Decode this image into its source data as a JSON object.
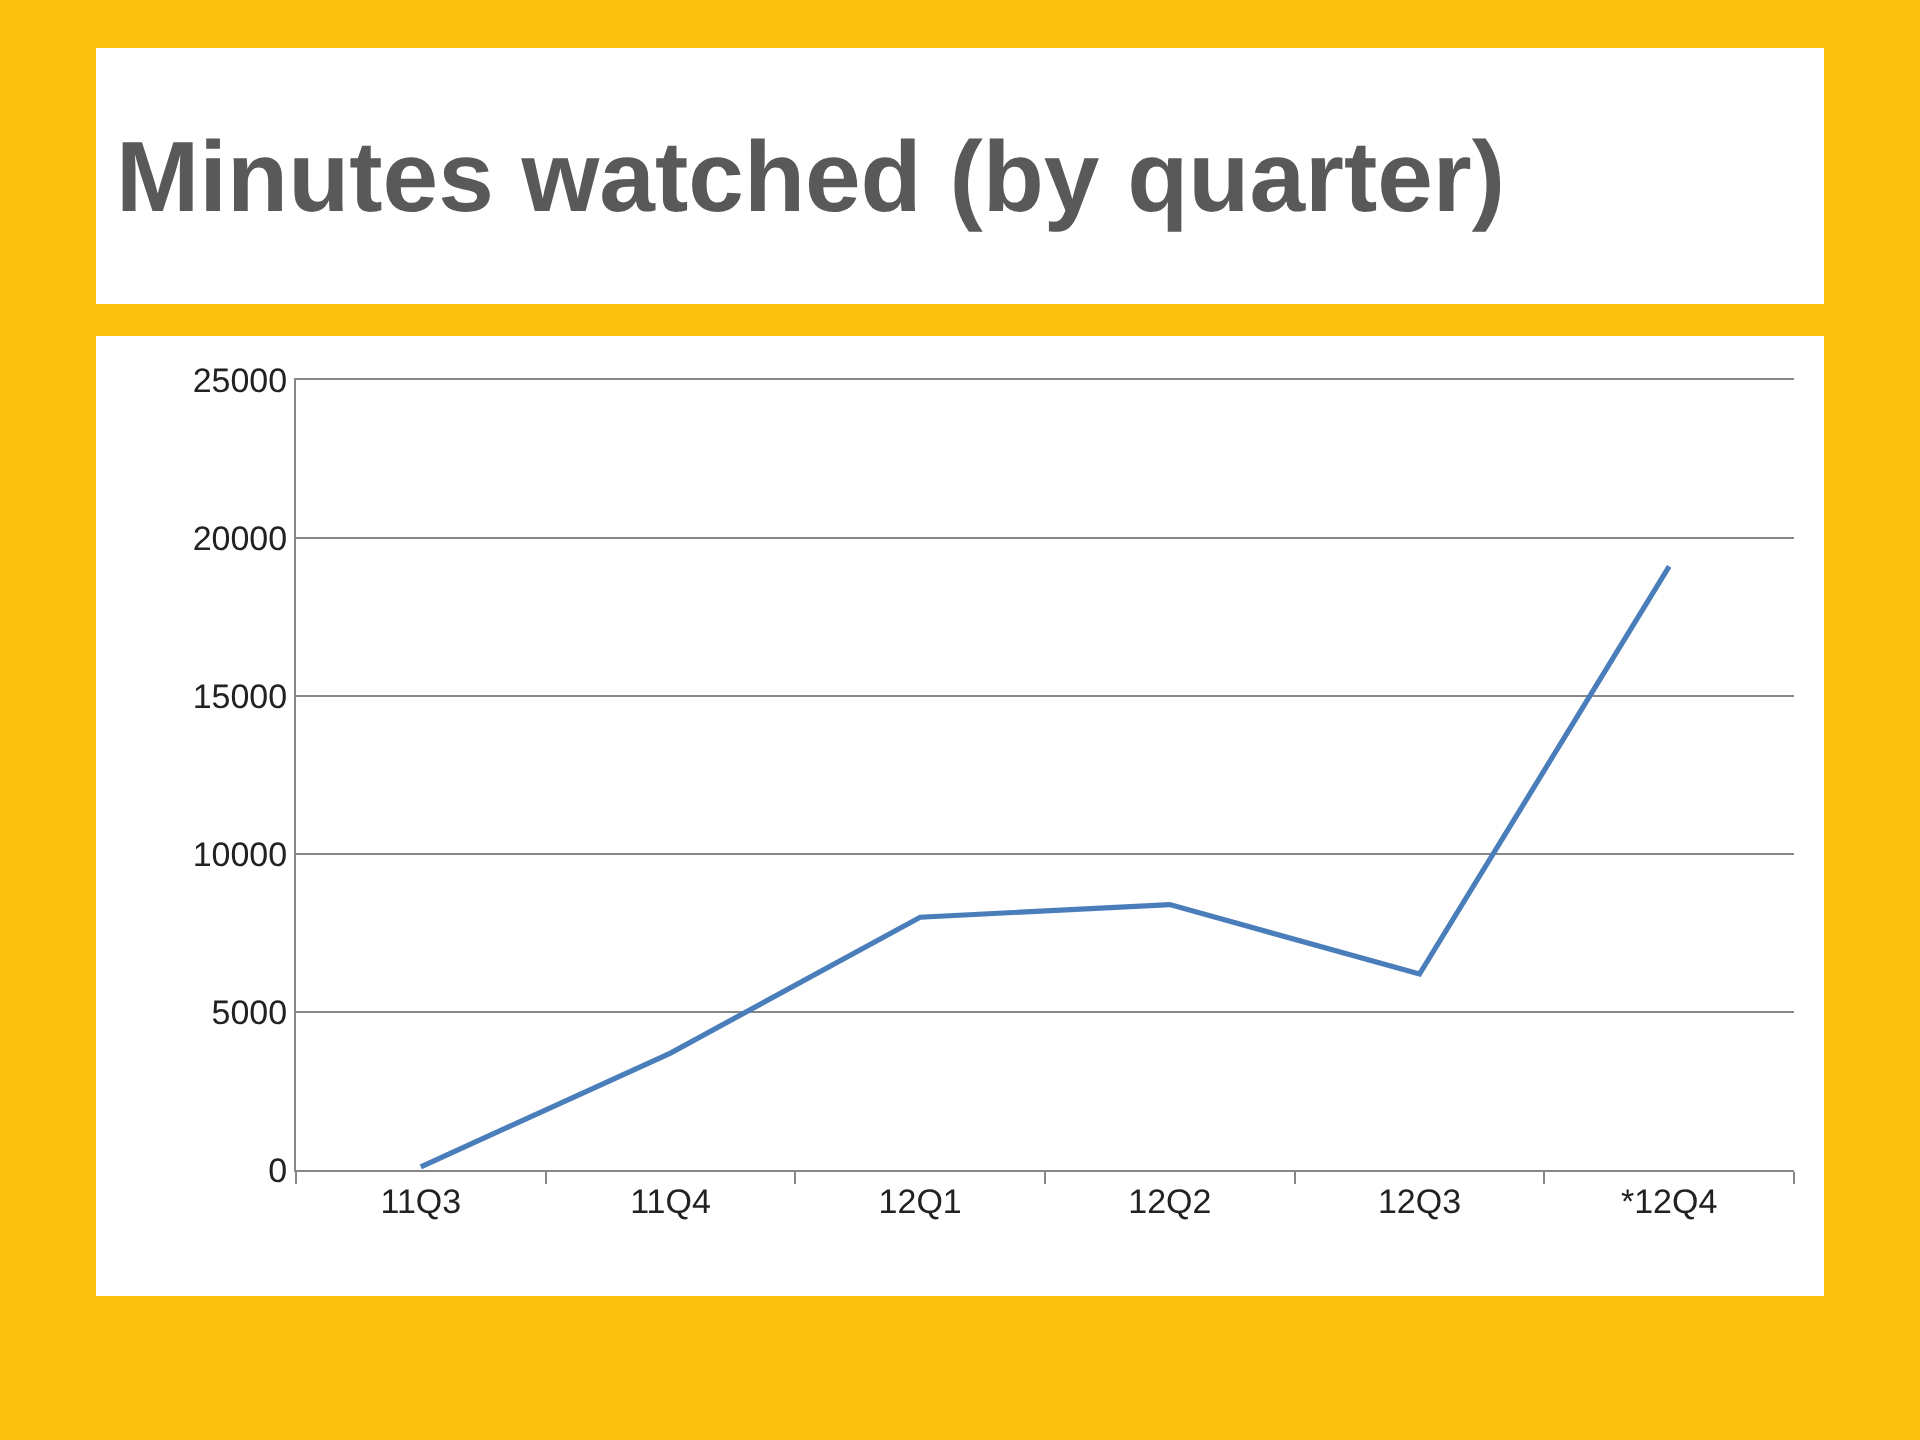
{
  "chart_data": {
    "type": "line",
    "title": "Minutes watched (by quarter)",
    "categories": [
      "11Q3",
      "11Q4",
      "12Q1",
      "12Q2",
      "12Q3",
      "*12Q4"
    ],
    "series": [
      {
        "color": "#4a7ebb",
        "values": [
          100,
          3700,
          8000,
          8400,
          6200,
          19100
        ]
      }
    ],
    "ylim": [
      0,
      25000
    ],
    "yticks": [
      0,
      5000,
      10000,
      15000,
      20000,
      25000
    ],
    "grid": "y",
    "marker": "none",
    "line_style": "solid"
  }
}
